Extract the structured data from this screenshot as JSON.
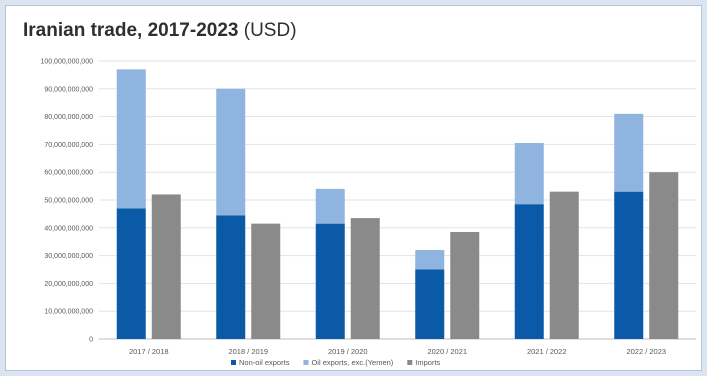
{
  "chart_data": {
    "type": "bar",
    "title": "Iranian trade, 2017-2023",
    "title_unit": "(USD)",
    "xlabel": "",
    "ylabel": "",
    "categories": [
      "2017  /  2018",
      "2018  /  2019",
      "2019  /  2020",
      "2020  /  2021",
      "2021  /  2022",
      "2022  /  2023"
    ],
    "y_ticks": [
      "0",
      "10,000,000,000",
      "20,000,000,000",
      "30,000,000,000",
      "40,000,000,000",
      "50,000,000,000",
      "60,000,000,000",
      "70,000,000,000",
      "80,000,000,000",
      "90,000,000,000",
      "100,000,000,000"
    ],
    "ylim": [
      0,
      100000000000
    ],
    "grid": true,
    "legend_position": "bottom",
    "series": [
      {
        "name": "Non-oil exports",
        "stack": "exports",
        "color": "#0b5aa8",
        "values": [
          47000000000,
          44500000000,
          41500000000,
          25000000000,
          48500000000,
          53000000000
        ]
      },
      {
        "name": "Oil exports, exc.(Yemen)",
        "stack": "exports",
        "color": "#8fb4df",
        "values": [
          50000000000,
          45500000000,
          12500000000,
          7000000000,
          22000000000,
          28000000000
        ]
      },
      {
        "name": "Imports",
        "stack": "imports",
        "color": "#8a8a8a",
        "values": [
          52000000000,
          41500000000,
          43500000000,
          38500000000,
          53000000000,
          60000000000
        ]
      }
    ]
  }
}
